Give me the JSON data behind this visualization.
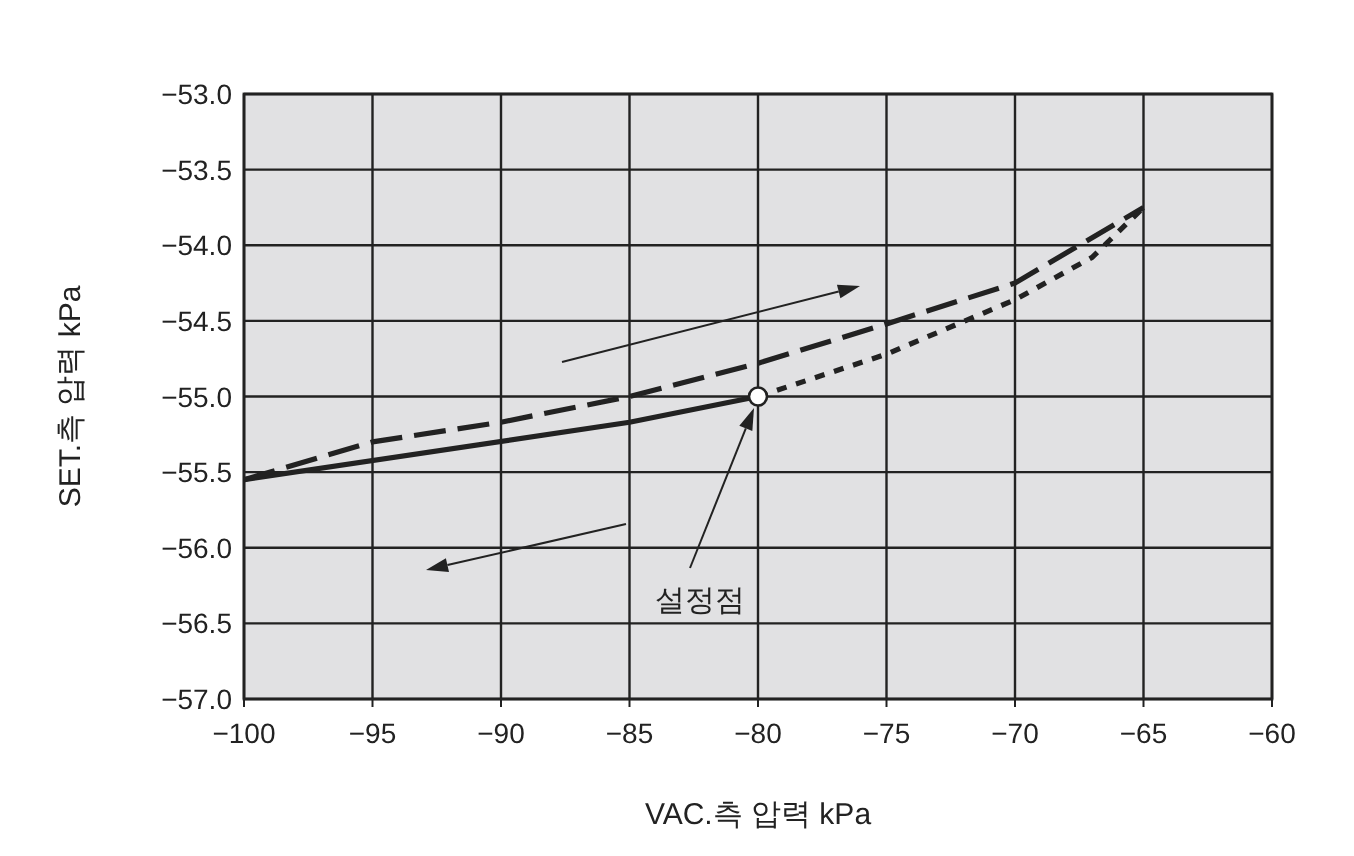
{
  "chart_data": {
    "type": "line",
    "xlabel": "VAC.측 압력 kPa",
    "ylabel": "SET.측 압력 kPa",
    "xlim": [
      -100,
      -60
    ],
    "ylim": [
      -57,
      -53
    ],
    "xticks": [
      {
        "value": -100,
        "label": "−100"
      },
      {
        "value": -95,
        "label": "−95"
      },
      {
        "value": -90,
        "label": "−90"
      },
      {
        "value": -85,
        "label": "−85"
      },
      {
        "value": -80,
        "label": "−80"
      },
      {
        "value": -75,
        "label": "−75"
      },
      {
        "value": -70,
        "label": "−70"
      },
      {
        "value": -65,
        "label": "−65"
      },
      {
        "value": -60,
        "label": "−60"
      }
    ],
    "yticks": [
      {
        "value": -53,
        "label": "−53.0"
      },
      {
        "value": -53.5,
        "label": "−53.5"
      },
      {
        "value": -54,
        "label": "−54.0"
      },
      {
        "value": -54.5,
        "label": "−54.5"
      },
      {
        "value": -55,
        "label": "−55.0"
      },
      {
        "value": -55.5,
        "label": "−55.5"
      },
      {
        "value": -56,
        "label": "−56.0"
      },
      {
        "value": -56.5,
        "label": "−56.5"
      },
      {
        "value": -57,
        "label": "−57.0"
      }
    ],
    "grid": true,
    "series": [
      {
        "color": "#222222",
        "line_style": "solid",
        "x": [
          -100,
          -85,
          -80
        ],
        "values": [
          -55.55,
          -55.17,
          -55.0
        ]
      },
      {
        "color": "#222222",
        "line_style": "dashed",
        "x": [
          -100,
          -95,
          -90,
          -85,
          -80,
          -75,
          -70,
          -65
        ],
        "values": [
          -55.55,
          -55.3,
          -55.17,
          -55.0,
          -54.78,
          -54.52,
          -54.25,
          -53.75
        ]
      },
      {
        "color": "#222222",
        "line_style": "dotted",
        "x": [
          -80,
          -75,
          -70,
          -67,
          -65
        ],
        "values": [
          -55.0,
          -54.72,
          -54.36,
          -54.08,
          -53.75
        ]
      },
      {
        "type": "scatter",
        "color": "#ffffff",
        "marker": "circle",
        "x": [
          -80
        ],
        "values": [
          -55.0
        ]
      }
    ],
    "annotations": [
      "설정점"
    ]
  }
}
